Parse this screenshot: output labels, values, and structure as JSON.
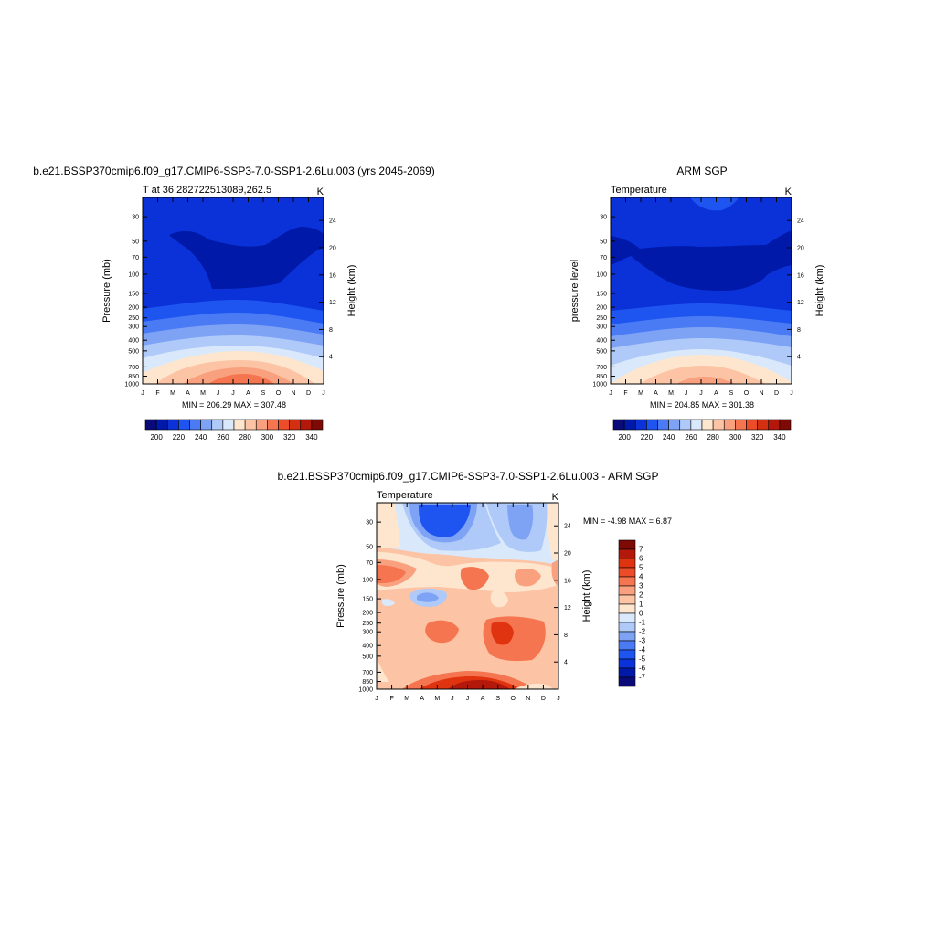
{
  "panels": [
    {
      "id": "model",
      "title": "b.e21.BSSP370cmip6.f09_g17.CMIP6-SSP3-7.0-SSP1-2.6Lu.003 (yrs 2045-2069)",
      "left_label": "T at 36.282722513089,262.5",
      "right_label": "K",
      "ylabel": "Pressure (mb)",
      "y2label": "Height (km)",
      "stats": "MIN = 206.29 MAX = 307.48"
    },
    {
      "id": "obs",
      "title": "ARM SGP",
      "left_label": "Temperature",
      "right_label": "K",
      "ylabel": "pressure level",
      "y2label": "Height (km)",
      "stats": "MIN = 204.85 MAX = 301.38"
    },
    {
      "id": "diff",
      "title": "b.e21.BSSP370cmip6.f09_g17.CMIP6-SSP3-7.0-SSP1-2.6Lu.003 - ARM SGP",
      "left_label": "Temperature",
      "right_label": "K",
      "ylabel": "Pressure (mb)",
      "y2label": "Height (km)",
      "stats": "MIN =  -4.98 MAX =   6.87"
    }
  ],
  "colorbar_abs": {
    "colors": [
      "#0a0a78",
      "#0019a8",
      "#0a32d8",
      "#1e55f0",
      "#4a7bf5",
      "#7ea3f5",
      "#afc9f8",
      "#d9e9fb",
      "#fde6cd",
      "#fcc4a5",
      "#f9a07f",
      "#f57550",
      "#ec4d28",
      "#d42f10",
      "#b3180a",
      "#7d0a05"
    ],
    "tick_labels": [
      "200",
      "220",
      "240",
      "260",
      "280",
      "300",
      "320",
      "340"
    ]
  },
  "colorbar_diff": {
    "colors": [
      "#7d0a05",
      "#b3180a",
      "#e0330f",
      "#ec4d28",
      "#f57550",
      "#f9a07f",
      "#fcc4a5",
      "#fde6cd",
      "#d9e9fb",
      "#afc9f8",
      "#7ea3f5",
      "#4a7bf5",
      "#1e55f0",
      "#0a32d8",
      "#0019a8",
      "#0a0a78"
    ],
    "tick_labels": [
      "7",
      "6",
      "5",
      "4",
      "3",
      "2",
      "1",
      "0",
      "-1",
      "-2",
      "-3",
      "-4",
      "-5",
      "-6",
      "-7"
    ]
  },
  "chart_data": [
    {
      "type": "heatmap",
      "title": "b.e21.BSSP370cmip6.f09_g17.CMIP6-SSP3-7.0-SSP1-2.6Lu.003 (yrs 2045-2069)",
      "subtitle": "T at 36.282722513089,262.5",
      "units": "K",
      "xlabel": "",
      "ylabel": "Pressure (mb)",
      "y2label": "Height (km)",
      "x_tick_labels": [
        "J",
        "F",
        "M",
        "A",
        "M",
        "J",
        "J",
        "A",
        "S",
        "O",
        "N",
        "D",
        "J"
      ],
      "y_ticks": [
        30,
        50,
        70,
        100,
        150,
        200,
        250,
        300,
        400,
        500,
        700,
        850,
        1000
      ],
      "y2_ticks": [
        4,
        8,
        12,
        16,
        20,
        24
      ],
      "ylim": [
        1000,
        20
      ],
      "log_scale_y": true,
      "min": 206.29,
      "max": 307.48,
      "levels": [
        200,
        210,
        220,
        230,
        240,
        250,
        260,
        270,
        280,
        290,
        300,
        310,
        320,
        330,
        340
      ]
    },
    {
      "type": "heatmap",
      "title": "ARM SGP",
      "subtitle": "Temperature",
      "units": "K",
      "xlabel": "",
      "ylabel": "pressure level",
      "y2label": "Height (km)",
      "x_tick_labels": [
        "J",
        "F",
        "M",
        "A",
        "M",
        "J",
        "J",
        "A",
        "S",
        "O",
        "N",
        "D",
        "J"
      ],
      "y_ticks": [
        30,
        50,
        70,
        100,
        150,
        200,
        250,
        300,
        400,
        500,
        700,
        850,
        1000
      ],
      "y2_ticks": [
        4,
        8,
        12,
        16,
        20,
        24
      ],
      "ylim": [
        1000,
        20
      ],
      "log_scale_y": true,
      "min": 204.85,
      "max": 301.38,
      "levels": [
        200,
        210,
        220,
        230,
        240,
        250,
        260,
        270,
        280,
        290,
        300,
        310,
        320,
        330,
        340
      ]
    },
    {
      "type": "heatmap",
      "title": "b.e21.BSSP370cmip6.f09_g17.CMIP6-SSP3-7.0-SSP1-2.6Lu.003 - ARM SGP",
      "subtitle": "Temperature",
      "units": "K",
      "xlabel": "",
      "ylabel": "Pressure (mb)",
      "y2label": "Height (km)",
      "x_tick_labels": [
        "J",
        "F",
        "M",
        "A",
        "M",
        "J",
        "J",
        "A",
        "S",
        "O",
        "N",
        "D",
        "J"
      ],
      "y_ticks": [
        30,
        50,
        70,
        100,
        150,
        200,
        250,
        300,
        400,
        500,
        700,
        850,
        1000
      ],
      "y2_ticks": [
        4,
        8,
        12,
        16,
        20,
        24
      ],
      "ylim": [
        1000,
        20
      ],
      "log_scale_y": true,
      "min": -4.98,
      "max": 6.87,
      "levels": [
        -7,
        -6,
        -5,
        -4,
        -3,
        -2,
        -1,
        0,
        1,
        2,
        3,
        4,
        5,
        6,
        7
      ]
    }
  ]
}
